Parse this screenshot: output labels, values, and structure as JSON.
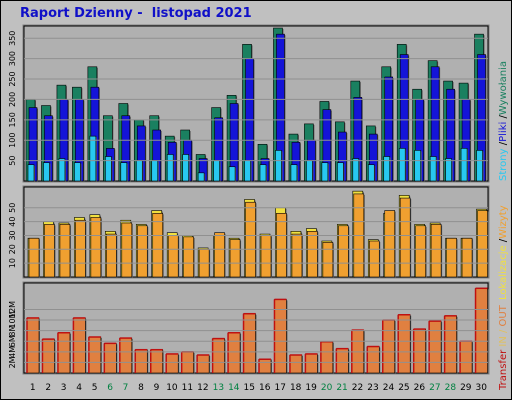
{
  "title": "Raport Dzienny -  listopad 2021",
  "colors": {
    "background": "#c0c0c0",
    "plot_bg": "#b0b0b0",
    "wywolania": "#1a8060",
    "pliki": "#1414d8",
    "strony": "#28c8f0",
    "wizyty": "#f0a030",
    "lokalizacje": "#f0e040",
    "transfer": "#c01010",
    "in_out": "#e08040",
    "day_normal": "#000000",
    "day_weekend": "#008040"
  },
  "legend": {
    "top": [
      "Wywołania",
      "Pliki",
      "Strony"
    ],
    "middle": [
      "Wizyty",
      "Lokalizacje"
    ],
    "bottom": [
      "Transfer",
      "IN",
      "OUT"
    ],
    "sep": "/"
  },
  "chart_data": [
    {
      "type": "bar",
      "name": "top",
      "categories": [
        "1",
        "2",
        "3",
        "4",
        "5",
        "6",
        "7",
        "8",
        "9",
        "10",
        "11",
        "12",
        "13",
        "14",
        "15",
        "16",
        "17",
        "18",
        "19",
        "20",
        "21",
        "22",
        "23",
        "24",
        "25",
        "26",
        "27",
        "28",
        "29",
        "30"
      ],
      "ylim": [
        0,
        380
      ],
      "yticks": [
        "50",
        "100",
        "150",
        "200",
        "250",
        "300",
        "350"
      ],
      "series": [
        {
          "name": "Wywołania",
          "values": [
            200,
            185,
            235,
            230,
            280,
            160,
            190,
            150,
            160,
            110,
            125,
            65,
            180,
            210,
            335,
            90,
            375,
            115,
            140,
            195,
            145,
            245,
            135,
            280,
            335,
            225,
            295,
            245,
            240,
            360
          ]
        },
        {
          "name": "Pliki",
          "values": [
            180,
            160,
            200,
            200,
            230,
            80,
            160,
            135,
            125,
            95,
            100,
            55,
            155,
            190,
            300,
            55,
            360,
            95,
            100,
            175,
            120,
            205,
            115,
            255,
            310,
            200,
            280,
            225,
            200,
            310
          ]
        },
        {
          "name": "Strony",
          "values": [
            40,
            45,
            55,
            45,
            110,
            60,
            45,
            50,
            50,
            65,
            65,
            20,
            50,
            35,
            50,
            40,
            75,
            40,
            50,
            45,
            45,
            55,
            40,
            60,
            80,
            75,
            60,
            55,
            80,
            75
          ]
        }
      ]
    },
    {
      "type": "bar",
      "name": "middle",
      "categories": [
        "1",
        "2",
        "3",
        "4",
        "5",
        "6",
        "7",
        "8",
        "9",
        "10",
        "11",
        "12",
        "13",
        "14",
        "15",
        "16",
        "17",
        "18",
        "19",
        "20",
        "21",
        "22",
        "23",
        "24",
        "25",
        "26",
        "27",
        "28",
        "29",
        "30"
      ],
      "ylim": [
        0,
        65
      ],
      "yticks": [
        "10",
        "20",
        "30",
        "40",
        "50"
      ],
      "series": [
        {
          "name": "Wizyty",
          "values": [
            28,
            40,
            39,
            43,
            45,
            33,
            41,
            38,
            48,
            32,
            30,
            21,
            30,
            28,
            56,
            31,
            50,
            33,
            35,
            26,
            38,
            62,
            27,
            46,
            59,
            38,
            39,
            28,
            28,
            49
          ]
        },
        {
          "name": "Lokalizacje",
          "values": [
            28,
            38,
            38,
            41,
            43,
            31,
            39,
            37,
            46,
            30,
            29,
            20,
            32,
            27,
            54,
            30,
            46,
            31,
            33,
            25,
            37,
            60,
            26,
            48,
            57,
            37,
            38,
            28,
            28,
            48
          ]
        }
      ]
    },
    {
      "type": "bar",
      "name": "bottom",
      "categories": [
        "1",
        "2",
        "3",
        "4",
        "5",
        "6",
        "7",
        "8",
        "9",
        "10",
        "11",
        "12",
        "13",
        "14",
        "15",
        "16",
        "17",
        "18",
        "19",
        "20",
        "21",
        "22",
        "23",
        "24",
        "25",
        "26",
        "27",
        "28",
        "29",
        "30"
      ],
      "ylim": [
        0,
        17
      ],
      "yticks": [
        "2M",
        "4M",
        "6M",
        "8M",
        "10M",
        "12M"
      ],
      "series": [
        {
          "name": "Transfer",
          "values": [
            10.4,
            6.4,
            7.6,
            10.4,
            6.8,
            5.6,
            6.6,
            4.4,
            4.4,
            3.6,
            4.0,
            3.4,
            6.5,
            7.6,
            11.2,
            2.6,
            13.9,
            3.4,
            3.6,
            5.9,
            4.6,
            8.1,
            5.0,
            10.0,
            11.0,
            8.3,
            9.8,
            10.8,
            6.0,
            16.0
          ]
        }
      ]
    }
  ],
  "weekend_days": [
    "6",
    "7",
    "13",
    "14",
    "20",
    "21",
    "27",
    "28"
  ]
}
